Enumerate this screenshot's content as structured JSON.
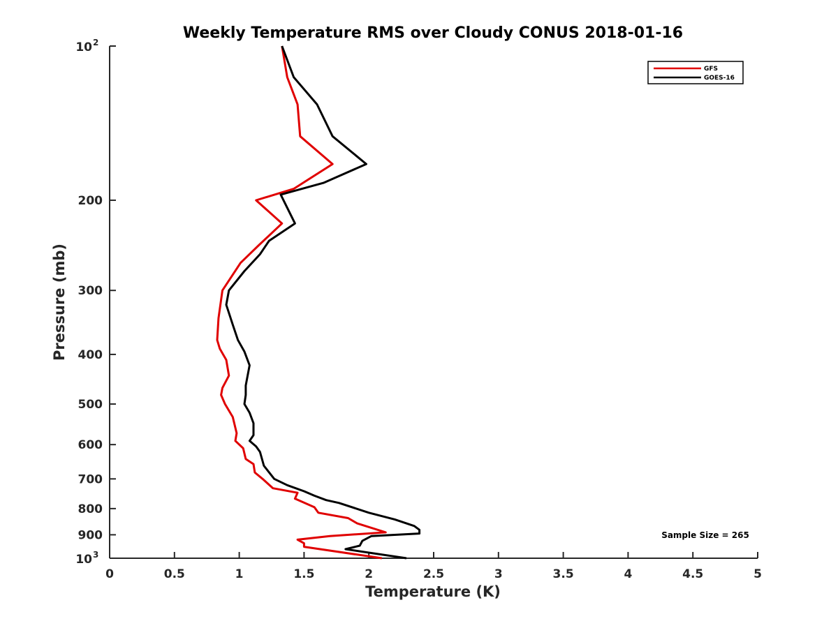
{
  "chart_data": {
    "type": "line",
    "title": "Weekly Temperature RMS over Cloudy CONUS 2018-01-16",
    "xlabel": "Temperature (K)",
    "ylabel": "Pressure (mb)",
    "xlim": [
      0,
      5
    ],
    "ylim": [
      100,
      1000
    ],
    "y_scale": "log",
    "y_reversed": true,
    "x_ticks": [
      0,
      0.5,
      1,
      1.5,
      2,
      2.5,
      3,
      3.5,
      4,
      4.5,
      5
    ],
    "x_tick_labels": [
      "0",
      "0.5",
      "1",
      "1.5",
      "2",
      "2.5",
      "3",
      "3.5",
      "4",
      "4.5",
      "5"
    ],
    "y_ticks": [
      200,
      300,
      400,
      500,
      600,
      700,
      800,
      900
    ],
    "y_tick_labels": [
      "200",
      "300",
      "400",
      "500",
      "600",
      "700",
      "800",
      "900"
    ],
    "y_top_label": {
      "base": "10",
      "exp": "2"
    },
    "y_bottom_label": {
      "base": "10",
      "exp": "3"
    },
    "grid": false,
    "legend_position": "top-right",
    "annotation": "Sample Size = 265",
    "series": [
      {
        "name": "GFS",
        "color": "#e00000",
        "points": [
          [
            1.33,
            100
          ],
          [
            1.37,
            115
          ],
          [
            1.45,
            130
          ],
          [
            1.47,
            150
          ],
          [
            1.72,
            170
          ],
          [
            1.42,
            190
          ],
          [
            1.13,
            200
          ],
          [
            1.33,
            222
          ],
          [
            1.15,
            245
          ],
          [
            1.01,
            265
          ],
          [
            0.87,
            300
          ],
          [
            0.84,
            340
          ],
          [
            0.83,
            375
          ],
          [
            0.85,
            390
          ],
          [
            0.9,
            410
          ],
          [
            0.92,
            440
          ],
          [
            0.87,
            465
          ],
          [
            0.86,
            480
          ],
          [
            0.89,
            500
          ],
          [
            0.95,
            530
          ],
          [
            0.98,
            570
          ],
          [
            0.97,
            590
          ],
          [
            1.03,
            610
          ],
          [
            1.05,
            640
          ],
          [
            1.11,
            655
          ],
          [
            1.12,
            680
          ],
          [
            1.18,
            700
          ],
          [
            1.26,
            730
          ],
          [
            1.45,
            745
          ],
          [
            1.43,
            765
          ],
          [
            1.58,
            795
          ],
          [
            1.61,
            815
          ],
          [
            1.84,
            835
          ],
          [
            1.91,
            855
          ],
          [
            2.13,
            890
          ],
          [
            1.7,
            905
          ],
          [
            1.45,
            920
          ],
          [
            1.5,
            935
          ],
          [
            1.5,
            950
          ],
          [
            2.1,
            1000
          ]
        ]
      },
      {
        "name": "GOES-16",
        "color": "#000000",
        "points": [
          [
            1.33,
            100
          ],
          [
            1.42,
            115
          ],
          [
            1.6,
            130
          ],
          [
            1.72,
            150
          ],
          [
            1.98,
            170
          ],
          [
            1.65,
            185
          ],
          [
            1.32,
            195
          ],
          [
            1.43,
            222
          ],
          [
            1.23,
            240
          ],
          [
            1.16,
            255
          ],
          [
            1.04,
            275
          ],
          [
            0.92,
            300
          ],
          [
            0.9,
            320
          ],
          [
            0.95,
            350
          ],
          [
            0.99,
            375
          ],
          [
            1.04,
            395
          ],
          [
            1.08,
            420
          ],
          [
            1.05,
            460
          ],
          [
            1.05,
            480
          ],
          [
            1.04,
            500
          ],
          [
            1.08,
            520
          ],
          [
            1.11,
            545
          ],
          [
            1.11,
            575
          ],
          [
            1.08,
            590
          ],
          [
            1.13,
            605
          ],
          [
            1.16,
            620
          ],
          [
            1.19,
            660
          ],
          [
            1.27,
            700
          ],
          [
            1.37,
            720
          ],
          [
            1.5,
            740
          ],
          [
            1.58,
            755
          ],
          [
            1.67,
            770
          ],
          [
            1.77,
            780
          ],
          [
            2.0,
            815
          ],
          [
            2.2,
            840
          ],
          [
            2.35,
            865
          ],
          [
            2.39,
            880
          ],
          [
            2.39,
            895
          ],
          [
            2.02,
            905
          ],
          [
            1.95,
            925
          ],
          [
            1.93,
            945
          ],
          [
            1.82,
            960
          ],
          [
            2.29,
            1000
          ]
        ]
      }
    ]
  }
}
